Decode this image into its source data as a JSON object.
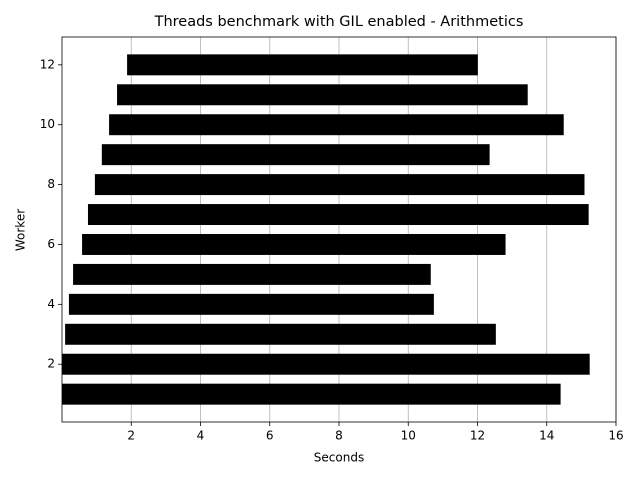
{
  "chart_data": {
    "type": "barh-range",
    "title": "Threads benchmark with GIL enabled - Arithmetics",
    "xlabel": "Seconds",
    "ylabel": "Worker",
    "y": [
      1,
      2,
      3,
      4,
      5,
      6,
      7,
      8,
      9,
      10,
      11,
      12
    ],
    "starts": [
      0,
      0,
      0.09,
      0.2,
      0.32,
      0.58,
      0.75,
      0.95,
      1.15,
      1.36,
      1.59,
      1.88
    ],
    "ends": [
      14.4,
      15.24,
      12.53,
      10.74,
      10.65,
      12.81,
      15.21,
      15.09,
      12.35,
      14.49,
      13.45,
      12.01
    ],
    "color": "#000000",
    "xlim": [
      0,
      16
    ],
    "xticks": [
      2,
      4,
      6,
      8,
      10,
      12,
      14,
      16
    ],
    "ylim": [
      0.07,
      12.93
    ],
    "yticks": [
      2,
      4,
      6,
      8,
      10,
      12
    ],
    "grid_x": true
  }
}
